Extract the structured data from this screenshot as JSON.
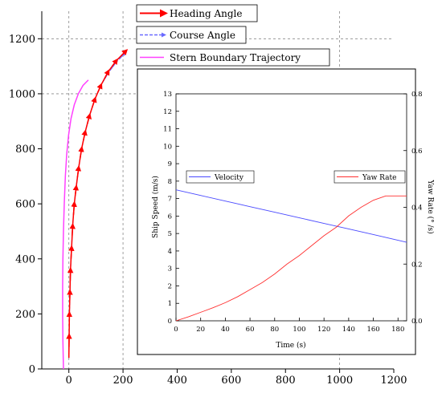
{
  "chart_data": [
    {
      "type": "line",
      "xlim": [
        -100,
        1200
      ],
      "ylim": [
        0,
        1300
      ],
      "x_ticks": [
        "0",
        "200",
        "400",
        "600",
        "800",
        "1000",
        "1200"
      ],
      "y_ticks": [
        "0",
        "200",
        "400",
        "600",
        "800",
        "1000",
        "1200"
      ],
      "grid": "dashed vertical lines at x=0, 200, 1000 and horizontal lines at y=1000, 1200",
      "legend_placement": "top-center",
      "series": [
        {
          "name": "Heading Angle",
          "color": "#ff0000",
          "marker": "arrow",
          "x": [
            0,
            1,
            2,
            4,
            6,
            10,
            14,
            20,
            27,
            36,
            47,
            60,
            76,
            96,
            118,
            145,
            175,
            210
          ],
          "y": [
            40,
            120,
            200,
            280,
            360,
            440,
            520,
            600,
            660,
            730,
            800,
            860,
            920,
            980,
            1030,
            1080,
            1120,
            1155
          ]
        },
        {
          "name": "Course Angle",
          "color": "#6a6aff",
          "marker": "arrow",
          "x": [
            0,
            1,
            2,
            4,
            6,
            10,
            14,
            20,
            27,
            36,
            47,
            60,
            76,
            96,
            118,
            145,
            175,
            205
          ],
          "y": [
            40,
            120,
            200,
            280,
            360,
            440,
            520,
            600,
            660,
            730,
            800,
            860,
            920,
            980,
            1030,
            1075,
            1115,
            1145
          ]
        },
        {
          "name": "Stern Boundary Trajectory",
          "color": "#ff40ff",
          "x": [
            -20,
            -22,
            -23,
            -23,
            -22,
            -20,
            -17,
            -13,
            -8,
            -1,
            8,
            20,
            35,
            52,
            72
          ],
          "y": [
            0,
            100,
            200,
            300,
            400,
            500,
            600,
            700,
            780,
            850,
            910,
            960,
            1000,
            1030,
            1050
          ]
        }
      ]
    },
    {
      "type": "line",
      "xlabel": "Time (s)",
      "ylabel": "Ship Speed (m/s)",
      "y2label": "Yaw Rate (° /s)",
      "xlim": [
        0,
        187
      ],
      "ylim": [
        0,
        13
      ],
      "y2lim": [
        0,
        0.8
      ],
      "x_ticks": [
        "0",
        "20",
        "40",
        "60",
        "80",
        "100",
        "120",
        "140",
        "160",
        "180"
      ],
      "y_ticks": [
        "0",
        "1",
        "2",
        "3",
        "4",
        "5",
        "6",
        "7",
        "8",
        "9",
        "10",
        "11",
        "12",
        "13"
      ],
      "y2_ticks": [
        "0.0",
        "0.2",
        "0.4",
        "0.6",
        "0.8"
      ],
      "grid": false,
      "series": [
        {
          "name": "Velocity",
          "axis": "left",
          "color": "#4a4aff",
          "x": [
            0,
            20,
            40,
            60,
            80,
            100,
            120,
            140,
            160,
            187
          ],
          "y": [
            7.5,
            7.18,
            6.86,
            6.54,
            6.22,
            5.9,
            5.58,
            5.26,
            4.94,
            4.5
          ]
        },
        {
          "name": "Yaw Rate",
          "axis": "right",
          "color": "#ff3030",
          "x": [
            0,
            10,
            20,
            30,
            40,
            50,
            60,
            70,
            80,
            90,
            100,
            110,
            120,
            130,
            140,
            150,
            160,
            170,
            180,
            187
          ],
          "y": [
            0.0,
            0.014,
            0.03,
            0.046,
            0.064,
            0.085,
            0.11,
            0.135,
            0.165,
            0.2,
            0.23,
            0.265,
            0.3,
            0.33,
            0.37,
            0.4,
            0.425,
            0.44,
            0.44,
            0.44
          ]
        }
      ]
    }
  ]
}
